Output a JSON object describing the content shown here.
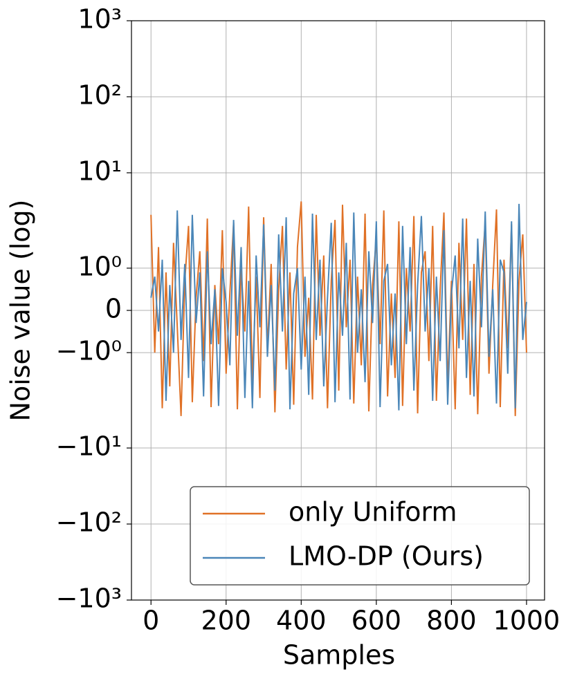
{
  "chart_data": {
    "type": "line",
    "yscale": "symlog",
    "linthresh": 2,
    "xlabel": "Samples",
    "ylabel": "Noise value (log)",
    "x": [
      0,
      10,
      20,
      30,
      40,
      50,
      60,
      70,
      80,
      90,
      100,
      110,
      120,
      130,
      140,
      150,
      160,
      170,
      180,
      190,
      200,
      210,
      220,
      230,
      240,
      250,
      260,
      270,
      280,
      290,
      300,
      310,
      320,
      330,
      340,
      350,
      360,
      370,
      380,
      390,
      400,
      410,
      420,
      430,
      440,
      450,
      460,
      470,
      480,
      490,
      500,
      510,
      520,
      530,
      540,
      550,
      560,
      570,
      580,
      590,
      600,
      610,
      620,
      630,
      640,
      650,
      660,
      670,
      680,
      690,
      700,
      710,
      720,
      730,
      740,
      750,
      760,
      770,
      780,
      790,
      800,
      810,
      820,
      830,
      840,
      850,
      860,
      870,
      880,
      890,
      900,
      910,
      920,
      930,
      940,
      950,
      960,
      970,
      980,
      990,
      1000
    ],
    "series": [
      {
        "name": "only Uniform",
        "color": "#e07126",
        "values": [
          2.8,
          -1.0,
          1.5,
          -3.0,
          0.9,
          -1.8,
          1.6,
          -0.4,
          -3.8,
          0.7,
          2.0,
          -2.5,
          0.3,
          1.4,
          -1.2,
          2.5,
          -2.9,
          0.6,
          -0.8,
          1.9,
          -1.5,
          0.4,
          2.2,
          -3.1,
          1.0,
          -0.5,
          3.6,
          -1.7,
          0.8,
          -2.2,
          2.6,
          -0.9,
          1.1,
          -3.4,
          0.5,
          2.0,
          -1.4,
          0.9,
          -2.7,
          1.5,
          4.2,
          -1.1,
          0.3,
          -2.3,
          2.8,
          -0.6,
          1.3,
          -3.0,
          0.7,
          2.4,
          -1.9,
          3.8,
          -0.4,
          1.2,
          -2.6,
          0.8,
          -1.3,
          2.9,
          -3.3,
          0.6,
          1.7,
          -0.8,
          3.2,
          -2.1,
          0.4,
          -1.6,
          2.3,
          -2.8,
          1.0,
          -0.5,
          2.7,
          -3.5,
          0.9,
          1.4,
          -1.2,
          2.0,
          -2.4,
          0.5,
          3.0,
          -1.8,
          0.7,
          -3.1,
          1.6,
          -0.7,
          2.5,
          -2.0,
          1.1,
          -3.6,
          0.8,
          2.2,
          -1.5,
          0.6,
          3.3,
          -2.9,
          1.2,
          -0.9,
          2.1,
          -3.8,
          0.7,
          1.8,
          -1.0
        ]
      },
      {
        "name": "LMO-DP (Ours)",
        "color": "#4a86b8",
        "values": [
          0.3,
          0.8,
          -0.5,
          1.2,
          -2.4,
          0.6,
          -1.0,
          3.2,
          -0.7,
          1.1,
          -1.6,
          2.8,
          -0.3,
          0.9,
          -2.1,
          1.4,
          -0.8,
          0.5,
          -2.8,
          1.0,
          0.2,
          -1.3,
          2.4,
          -0.6,
          1.5,
          -2.2,
          0.7,
          -3.0,
          1.3,
          -0.4,
          2.1,
          -1.1,
          0.6,
          -1.9,
          1.8,
          -0.5,
          2.6,
          -3.1,
          0.4,
          1.0,
          -1.4,
          0.8,
          -2.0,
          2.9,
          -0.7,
          1.2,
          -1.8,
          0.3,
          2.2,
          -2.5,
          0.9,
          -0.6,
          1.6,
          -2.3,
          3.0,
          -1.0,
          0.5,
          -1.7,
          1.4,
          -0.3,
          2.3,
          -2.9,
          0.7,
          1.1,
          -1.3,
          0.4,
          -3.2,
          2.0,
          -0.8,
          1.5,
          -1.9,
          0.6,
          2.7,
          -0.5,
          1.0,
          -2.4,
          0.8,
          -1.2,
          1.9,
          -2.7,
          0.4,
          1.3,
          -0.9,
          2.5,
          -1.6,
          0.7,
          -2.1,
          1.7,
          -0.4,
          3.1,
          -1.1,
          0.5,
          -2.6,
          1.2,
          0.9,
          -1.5,
          2.3,
          -3.0,
          3.9,
          -0.7,
          0.2
        ]
      }
    ],
    "xlim": [
      -52,
      1048
    ],
    "xticks": [
      0,
      200,
      400,
      600,
      800,
      1000
    ],
    "ylim": [
      -1000,
      1000
    ],
    "yticks": [
      {
        "value": -1000,
        "label": "−10³"
      },
      {
        "value": -100,
        "label": "−10²"
      },
      {
        "value": -10,
        "label": "−10¹"
      },
      {
        "value": -1,
        "label": "−10⁰"
      },
      0,
      {
        "value": 1,
        "label": "10⁰"
      },
      {
        "value": 10,
        "label": "10¹"
      },
      {
        "value": 100,
        "label": "10²"
      },
      {
        "value": 1000,
        "label": "10³"
      }
    ],
    "grid": true,
    "legend": "lower right"
  }
}
